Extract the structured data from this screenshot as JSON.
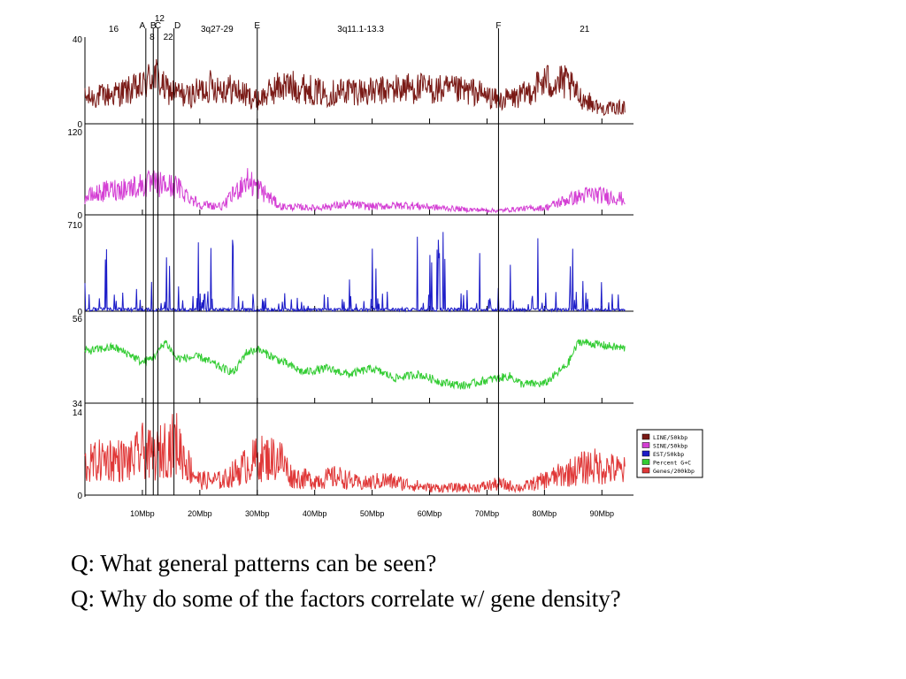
{
  "questions": [
    "Q: What general patterns can be seen?",
    "Q: Why do some of the factors correlate w/ gene density?"
  ],
  "chart_data": {
    "type": "line",
    "title": "",
    "xlabel": "",
    "xlim": [
      0,
      95.5
    ],
    "x_ticks": [
      10,
      20,
      30,
      40,
      50,
      60,
      70,
      80,
      90
    ],
    "x_tick_labels": [
      "10Mbp",
      "20Mbp",
      "30Mbp",
      "40Mbp",
      "50Mbp",
      "60Mbp",
      "70Mbp",
      "80Mbp",
      "90Mbp"
    ],
    "markers": [
      {
        "label": "A",
        "x": 10.6
      },
      {
        "label": "B",
        "x": 11.9
      },
      {
        "label": "C",
        "x": 12.7
      },
      {
        "label": "D",
        "x": 15.5
      },
      {
        "label": "E",
        "x": 30.0
      },
      {
        "label": "F",
        "x": 72.0
      }
    ],
    "band_labels": [
      {
        "label": "16",
        "x": 5.0
      },
      {
        "label": "12",
        "x": 13.0
      },
      {
        "label": "8",
        "x": 11.7
      },
      {
        "label": "22",
        "x": 14.5
      },
      {
        "label": "3q27-29",
        "x": 23.0
      },
      {
        "label": "3q11.1-13.3",
        "x": 48.0
      },
      {
        "label": "21",
        "x": 87.0
      }
    ],
    "series": [
      {
        "name": "LINE/50kbp",
        "color": "#7a1a16",
        "ylim": [
          0,
          40
        ],
        "y_tick_labels": [
          "0",
          "40"
        ],
        "profile": [
          [
            0,
            12
          ],
          [
            5,
            14
          ],
          [
            10,
            17
          ],
          [
            12,
            24
          ],
          [
            14,
            16
          ],
          [
            18,
            13
          ],
          [
            22,
            18
          ],
          [
            26,
            16
          ],
          [
            30,
            11
          ],
          [
            34,
            18
          ],
          [
            38,
            17
          ],
          [
            42,
            14
          ],
          [
            46,
            16
          ],
          [
            50,
            15
          ],
          [
            56,
            17
          ],
          [
            62,
            16
          ],
          [
            68,
            15
          ],
          [
            72,
            11
          ],
          [
            76,
            13
          ],
          [
            80,
            20
          ],
          [
            84,
            19
          ],
          [
            86,
            13
          ],
          [
            90,
            7
          ],
          [
            95,
            8
          ]
        ]
      },
      {
        "name": "SINE/50kbp",
        "color": "#d43fd4",
        "ylim": [
          0,
          120
        ],
        "y_tick_labels": [
          "0",
          "120"
        ],
        "profile": [
          [
            0,
            25
          ],
          [
            4,
            35
          ],
          [
            8,
            40
          ],
          [
            12,
            45
          ],
          [
            16,
            40
          ],
          [
            20,
            15
          ],
          [
            24,
            12
          ],
          [
            28,
            50
          ],
          [
            30,
            40
          ],
          [
            34,
            12
          ],
          [
            40,
            10
          ],
          [
            46,
            15
          ],
          [
            50,
            12
          ],
          [
            56,
            14
          ],
          [
            62,
            10
          ],
          [
            66,
            8
          ],
          [
            72,
            6
          ],
          [
            76,
            9
          ],
          [
            80,
            10
          ],
          [
            84,
            22
          ],
          [
            88,
            30
          ],
          [
            92,
            26
          ],
          [
            95,
            20
          ]
        ]
      },
      {
        "name": "EST/50kbp",
        "color": "#1c1cc8",
        "ylim": [
          0,
          710
        ],
        "y_tick_labels": [
          "0",
          "710"
        ],
        "profile": [
          [
            0,
            30
          ],
          [
            20,
            25
          ],
          [
            40,
            22
          ],
          [
            60,
            30
          ],
          [
            80,
            25
          ],
          [
            95,
            20
          ]
        ]
      },
      {
        "name": "Percent G+C",
        "color": "#33cc33",
        "ylim": [
          34,
          56
        ],
        "y_tick_labels": [
          "34",
          "56"
        ],
        "profile": [
          [
            0,
            47.5
          ],
          [
            5,
            48.5
          ],
          [
            8,
            46.5
          ],
          [
            10,
            44.5
          ],
          [
            12,
            46
          ],
          [
            14,
            50
          ],
          [
            16,
            45.5
          ],
          [
            20,
            46
          ],
          [
            24,
            43
          ],
          [
            26,
            42
          ],
          [
            28,
            47
          ],
          [
            30,
            48
          ],
          [
            34,
            45
          ],
          [
            38,
            42
          ],
          [
            42,
            43
          ],
          [
            46,
            41.5
          ],
          [
            50,
            43
          ],
          [
            54,
            40.5
          ],
          [
            58,
            41.5
          ],
          [
            62,
            39.5
          ],
          [
            66,
            38.5
          ],
          [
            70,
            40
          ],
          [
            74,
            41
          ],
          [
            76,
            39
          ],
          [
            80,
            39
          ],
          [
            84,
            44
          ],
          [
            86,
            50
          ],
          [
            90,
            49
          ],
          [
            95,
            48
          ]
        ]
      },
      {
        "name": "Genes/200kbp",
        "color": "#e03838",
        "ylim": [
          0,
          14
        ],
        "y_tick_labels": [
          "0",
          "14"
        ],
        "profile": [
          [
            0,
            4
          ],
          [
            4,
            5
          ],
          [
            8,
            4.5
          ],
          [
            10,
            6
          ],
          [
            12,
            5
          ],
          [
            14,
            6.5
          ],
          [
            16,
            7
          ],
          [
            18,
            4
          ],
          [
            20,
            2
          ],
          [
            24,
            2
          ],
          [
            28,
            4
          ],
          [
            30,
            5
          ],
          [
            34,
            5
          ],
          [
            36,
            2.5
          ],
          [
            40,
            2
          ],
          [
            44,
            2.5
          ],
          [
            48,
            1.5
          ],
          [
            52,
            2
          ],
          [
            56,
            1.5
          ],
          [
            60,
            1
          ],
          [
            64,
            1
          ],
          [
            68,
            1
          ],
          [
            72,
            1.5
          ],
          [
            76,
            1
          ],
          [
            80,
            2
          ],
          [
            84,
            3
          ],
          [
            88,
            4
          ],
          [
            92,
            3.5
          ],
          [
            95,
            3
          ]
        ]
      }
    ]
  }
}
